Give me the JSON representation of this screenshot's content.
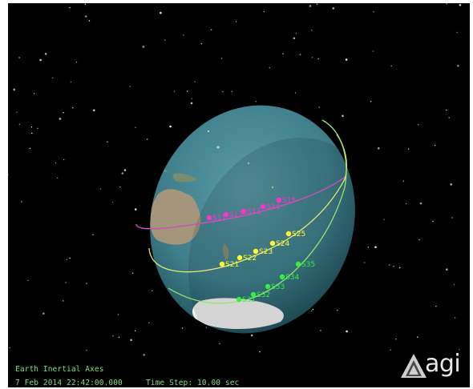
{
  "viewport": {
    "frame_label": "Earth Inertial Axes",
    "datetime": "7 Feb 2014 22:42:00.000",
    "time_step": "Time Step: 10.00 sec",
    "logo_text": "agi"
  },
  "satellite_groups": [
    {
      "name": "magenta",
      "color": "#ff33cc",
      "track_color": "#d54bbf",
      "satellites": [
        "S11",
        "S12",
        "S13",
        "S14",
        "S15"
      ]
    },
    {
      "name": "yellow",
      "color": "#ffff33",
      "track_color": "#e8e870",
      "satellites": [
        "S21",
        "S22",
        "S23",
        "S24",
        "S25"
      ]
    },
    {
      "name": "green",
      "color": "#33ee44",
      "track_color": "#9be66a",
      "satellites": [
        "S31",
        "S32",
        "S33",
        "S34",
        "S35"
      ]
    }
  ],
  "colors": {
    "ocean": "#3f7f8c",
    "land": "#a9977a",
    "ice": "#f2f2f2",
    "hud_text": "#7fe07f"
  }
}
